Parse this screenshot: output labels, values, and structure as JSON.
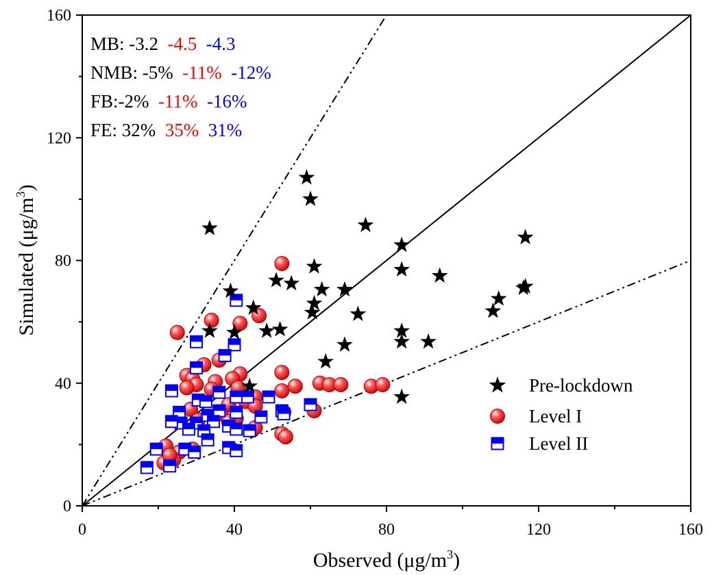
{
  "chart_data": {
    "type": "scatter",
    "xlabel": "Observed (μg/m3)",
    "ylabel": "Simulated (μg/m3)",
    "xlabel_parts": {
      "pre": "Observed (μg/m",
      "sup": "3",
      "post": ")"
    },
    "ylabel_parts": {
      "pre": "Simulated (μg/m",
      "sup": "3",
      "post": ")"
    },
    "xlim": [
      0,
      160
    ],
    "ylim": [
      0,
      160
    ],
    "xticks": [
      "0",
      "40",
      "80",
      "120",
      "160"
    ],
    "yticks": [
      "0",
      "40",
      "80",
      "120",
      "160"
    ],
    "reference_lines": [
      {
        "name": "1:1 line",
        "slope": 1,
        "style": "solid"
      },
      {
        "name": "2:1 line",
        "slope": 2,
        "style": "dash-dot-dot"
      },
      {
        "name": "1:2 line",
        "slope": 0.5,
        "style": "dash-dot-dot"
      }
    ],
    "stats": [
      {
        "label": "MB: ",
        "values": [
          "-3.2",
          "-4.5",
          "-4.3"
        ]
      },
      {
        "label": "NMB: ",
        "values": [
          "-5%",
          "-11%",
          "-12%"
        ]
      },
      {
        "label": "FB:",
        "values": [
          "-2%",
          "-11%",
          "-16%"
        ]
      },
      {
        "label": "FE: ",
        "values": [
          "32%",
          "35%",
          "31%"
        ]
      }
    ],
    "legend_position": "lower-right",
    "series": [
      {
        "name": "Pre-lockdown",
        "marker": "star",
        "color": "#000000",
        "points": [
          [
            33.5,
            90.5
          ],
          [
            59,
            107
          ],
          [
            60,
            100
          ],
          [
            74.5,
            91.5
          ],
          [
            84,
            85
          ],
          [
            116.5,
            87.5
          ],
          [
            39,
            70
          ],
          [
            51,
            73.5
          ],
          [
            55,
            72.5
          ],
          [
            61,
            78
          ],
          [
            63,
            70.5
          ],
          [
            69,
            70.5
          ],
          [
            84,
            77
          ],
          [
            94,
            75
          ],
          [
            116,
            71
          ],
          [
            116.5,
            71.5
          ],
          [
            109.5,
            67.5
          ],
          [
            108,
            63.5
          ],
          [
            72.5,
            62.5
          ],
          [
            60.5,
            63
          ],
          [
            61,
            66
          ],
          [
            45,
            64.5
          ],
          [
            33.5,
            57
          ],
          [
            40,
            56.5
          ],
          [
            48.5,
            57
          ],
          [
            52,
            57.5
          ],
          [
            69,
            52.5
          ],
          [
            84,
            57
          ],
          [
            84,
            53.5
          ],
          [
            91,
            53.5
          ],
          [
            64,
            47
          ],
          [
            44,
            39
          ],
          [
            84,
            35.5
          ]
        ]
      },
      {
        "name": "Level I",
        "marker": "circle",
        "color": "#ff0000",
        "points": [
          [
            52.5,
            79
          ],
          [
            25,
            56.5
          ],
          [
            34,
            60.5
          ],
          [
            41.5,
            59.5
          ],
          [
            46.5,
            62
          ],
          [
            32,
            46
          ],
          [
            36,
            47.5
          ],
          [
            27.5,
            42.5
          ],
          [
            41.5,
            43
          ],
          [
            52.5,
            43.5
          ],
          [
            29,
            41.5
          ],
          [
            30,
            39.5
          ],
          [
            35,
            40.5
          ],
          [
            39.5,
            41.5
          ],
          [
            27.5,
            38.5
          ],
          [
            34,
            38
          ],
          [
            41,
            38.5
          ],
          [
            52.5,
            37.5
          ],
          [
            56,
            39
          ],
          [
            62.5,
            40
          ],
          [
            65,
            39.5
          ],
          [
            68,
            39.5
          ],
          [
            76,
            39
          ],
          [
            79,
            39.5
          ],
          [
            43,
            34
          ],
          [
            45.5,
            35.5
          ],
          [
            38.5,
            33
          ],
          [
            45.5,
            32.5
          ],
          [
            28.5,
            31.5
          ],
          [
            36.5,
            30
          ],
          [
            40.5,
            28.5
          ],
          [
            53,
            30.5
          ],
          [
            61,
            31
          ],
          [
            30.5,
            28
          ],
          [
            38.5,
            27.5
          ],
          [
            45.5,
            25.5
          ],
          [
            52.5,
            23.5
          ],
          [
            53.5,
            22.5
          ],
          [
            22,
            19.5
          ],
          [
            25.5,
            17.5
          ],
          [
            29,
            18.5
          ],
          [
            24,
            15
          ],
          [
            21.5,
            14
          ],
          [
            23,
            16.5
          ]
        ]
      },
      {
        "name": "Level II",
        "marker": "square",
        "color": "#0000ff",
        "points": [
          [
            40.5,
            67
          ],
          [
            30,
            53.5
          ],
          [
            40,
            52.5
          ],
          [
            37.5,
            49
          ],
          [
            30,
            45
          ],
          [
            23.5,
            37.5
          ],
          [
            36,
            37
          ],
          [
            40.5,
            35.5
          ],
          [
            43.5,
            35.5
          ],
          [
            49,
            35.5
          ],
          [
            30.5,
            34.5
          ],
          [
            32.5,
            34
          ],
          [
            60,
            33
          ],
          [
            36,
            31
          ],
          [
            40.5,
            30.5
          ],
          [
            47,
            29
          ],
          [
            52.5,
            31
          ],
          [
            53,
            30
          ],
          [
            25.5,
            30.5
          ],
          [
            33,
            29.5
          ],
          [
            26,
            27
          ],
          [
            23.5,
            27.5
          ],
          [
            30,
            27
          ],
          [
            34.5,
            27.5
          ],
          [
            38.5,
            26
          ],
          [
            40.5,
            25
          ],
          [
            44,
            24.5
          ],
          [
            28,
            25
          ],
          [
            32,
            24.5
          ],
          [
            33,
            21.5
          ],
          [
            38.5,
            19
          ],
          [
            40.5,
            18
          ],
          [
            27,
            18.5
          ],
          [
            29.5,
            17.5
          ],
          [
            19.5,
            18.5
          ],
          [
            17,
            12.5
          ],
          [
            23,
            13
          ]
        ]
      }
    ]
  }
}
